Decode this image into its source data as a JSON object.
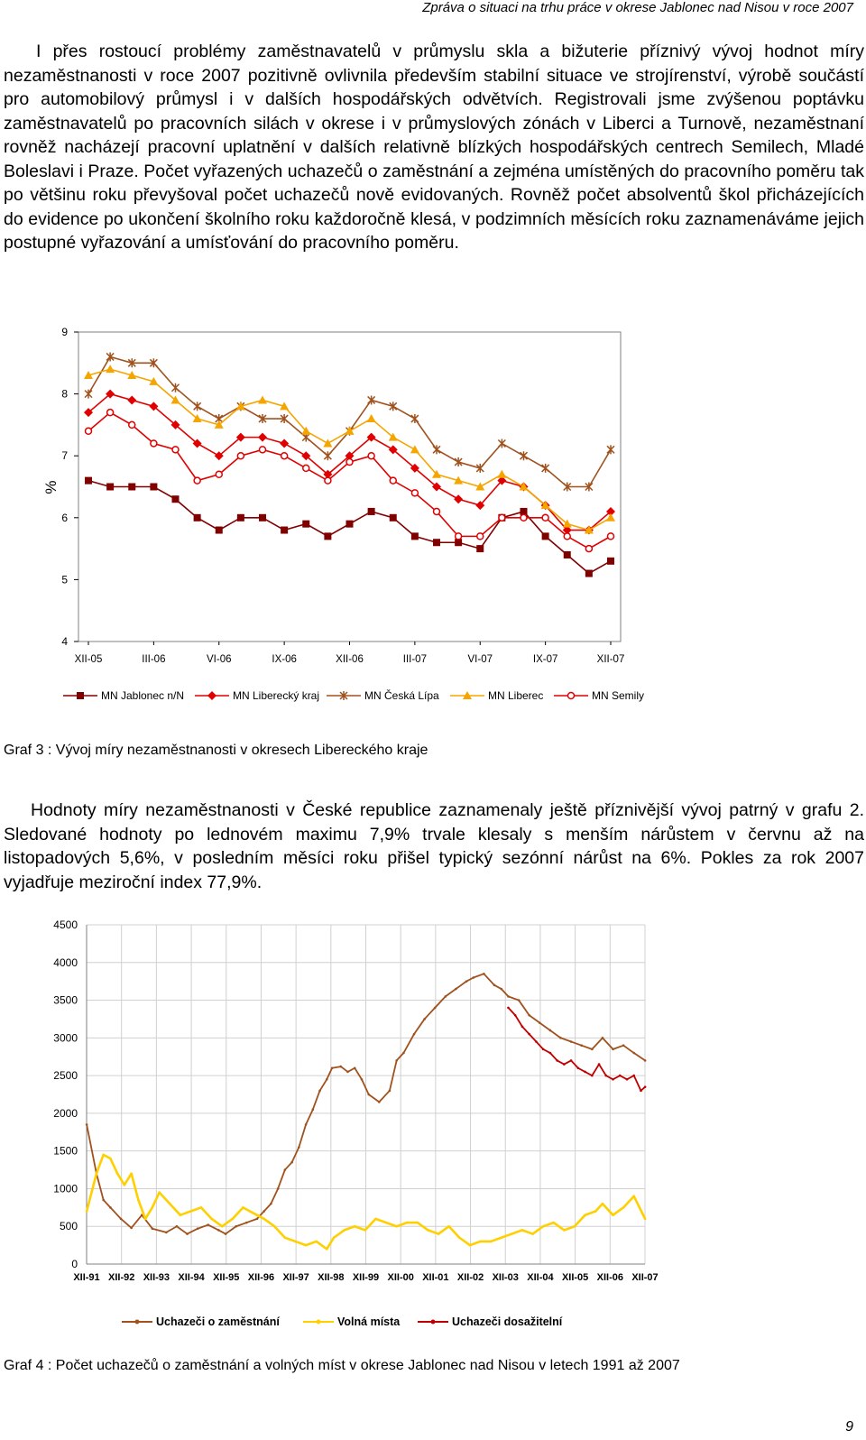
{
  "header": {
    "running_title": "Zpráva o situaci na trhu práce v okrese Jablonec nad Nisou v roce 2007"
  },
  "text": {
    "paragraph_1": "I přes rostoucí problémy zaměstnavatelů v průmyslu skla a bižuterie příznivý vývoj hodnot míry nezaměstnanosti v roce 2007 pozitivně ovlivnila především stabilní situace ve strojírenství, výrobě součástí pro automobilový průmysl i v dalších hospodářských odvětvích. Registrovali jsme zvýšenou poptávku zaměstnavatelů po pracovních silách v okrese i v průmyslových zónách v Liberci a Turnově, nezaměstnaní rovněž nacházejí pracovní uplatnění v dalších relativně blízkých hospodářských centrech Semilech, Mladé Boleslavi i Praze. Počet vyřazených uchazečů o zaměstnání a zejména umístěných do pracovního poměru tak po většinu roku převyšoval počet uchazečů nově evidovaných. Rovněž počet absolventů škol přicházejících do evidence po ukončení školního roku každoročně klesá, v podzimních měsících roku zaznamenáváme jejich postupné vyřazování a umísťování do pracovního poměru.",
    "paragraph_2": "Hodnoty míry nezaměstnanosti v České republice zaznamenaly ještě příznivější vývoj patrný v grafu 2. Sledované hodnoty po lednovém maximu 7,9% trvale klesaly s menším nárůstem v červnu až na listopadových 5,6%, v posledním měsíci roku přišel typický sezónní nárůst na 6%. Pokles za rok 2007 vyjadřuje meziroční index 77,9%."
  },
  "captions": {
    "graf3": "Graf 3 : Vývoj míry nezaměstnanosti v okresech Libereckého kraje",
    "graf4": "Graf 4 : Počet uchazečů o zaměstnání a volných míst v okrese Jablonec nad Nisou v letech 1991 až 2007"
  },
  "page_number": "9",
  "chart_data": [
    {
      "type": "line",
      "ylabel": "%",
      "ylim": [
        4,
        9
      ],
      "yticks": [
        "4",
        "5",
        "6",
        "7",
        "8",
        "9"
      ],
      "x": [
        "XII-05",
        "I-06",
        "II-06",
        "III-06",
        "IV-06",
        "V-06",
        "VI-06",
        "VII-06",
        "VIII-06",
        "IX-06",
        "X-06",
        "XI-06",
        "XII-06",
        "I-07",
        "II-07",
        "III-07",
        "IV-07",
        "V-07",
        "VI-07",
        "VII-07",
        "VIII-07",
        "IX-07",
        "X-07",
        "XI-07",
        "XII-07"
      ],
      "xtick_labels": [
        "XII-05",
        "III-06",
        "VI-06",
        "IX-06",
        "XII-06",
        "III-07",
        "VI-07",
        "IX-07",
        "XII-07"
      ],
      "legend_position": "bottom",
      "series": [
        {
          "name": "MN Jablonec n/N",
          "color": "#800000",
          "marker": "square",
          "values": [
            6.6,
            6.5,
            6.5,
            6.5,
            6.3,
            6.0,
            5.8,
            6.0,
            6.0,
            5.8,
            5.9,
            5.7,
            5.9,
            6.1,
            6.0,
            5.7,
            5.6,
            5.6,
            5.5,
            6.0,
            6.1,
            5.7,
            5.4,
            5.1,
            5.3
          ]
        },
        {
          "name": "MN Liberecký kraj",
          "color": "#e00000",
          "marker": "diamond",
          "values": [
            7.7,
            8.0,
            7.9,
            7.8,
            7.5,
            7.2,
            7.0,
            7.3,
            7.3,
            7.2,
            7.0,
            6.7,
            7.0,
            7.3,
            7.1,
            6.8,
            6.5,
            6.3,
            6.2,
            6.6,
            6.5,
            6.2,
            5.8,
            5.8,
            6.1
          ]
        },
        {
          "name": "MN Česká Lípa",
          "color": "#a0521e",
          "marker": "star",
          "values": [
            8.0,
            8.6,
            8.5,
            8.5,
            8.1,
            7.8,
            7.6,
            7.8,
            7.6,
            7.6,
            7.3,
            7.0,
            7.4,
            7.9,
            7.8,
            7.6,
            7.1,
            6.9,
            6.8,
            7.2,
            7.0,
            6.8,
            6.5,
            6.5,
            7.1
          ]
        },
        {
          "name": "MN Liberec",
          "color": "#f5a500",
          "marker": "triangle",
          "values": [
            8.3,
            8.4,
            8.3,
            8.2,
            7.9,
            7.6,
            7.5,
            7.8,
            7.9,
            7.8,
            7.4,
            7.2,
            7.4,
            7.6,
            7.3,
            7.1,
            6.7,
            6.6,
            6.5,
            6.7,
            6.5,
            6.2,
            5.9,
            5.8,
            6.0
          ]
        },
        {
          "name": "MN Semily",
          "color": "#e00000",
          "marker": "circle",
          "values": [
            7.4,
            7.7,
            7.5,
            7.2,
            7.1,
            6.6,
            6.7,
            7.0,
            7.1,
            7.0,
            6.8,
            6.6,
            6.9,
            7.0,
            6.6,
            6.4,
            6.1,
            5.7,
            5.7,
            6.0,
            6.0,
            6.0,
            5.7,
            5.5,
            5.7
          ]
        }
      ]
    },
    {
      "type": "line",
      "ylim": [
        0,
        4500
      ],
      "yticks": [
        "0",
        "500",
        "1000",
        "1500",
        "2000",
        "2500",
        "3000",
        "3500",
        "4000",
        "4500"
      ],
      "xlim": [
        1991.917,
        2007.917
      ],
      "xtick_labels": [
        "XII-91",
        "XII-92",
        "XII-93",
        "XII-94",
        "XII-95",
        "XII-96",
        "XII-97",
        "XII-98",
        "XII-99",
        "XII-00",
        "XII-01",
        "XII-02",
        "XII-03",
        "XII-04",
        "XII-05",
        "XII-06",
        "XII-07"
      ],
      "legend_position": "bottom",
      "series": [
        {
          "name": "Uchazeči o zaměstnání",
          "color": "#a0521e",
          "x": [
            1991.92,
            1992.2,
            1992.4,
            1992.6,
            1992.9,
            1993.2,
            1993.5,
            1993.8,
            1994.2,
            1994.5,
            1994.8,
            1995.1,
            1995.4,
            1995.7,
            1995.9,
            1996.2,
            1996.5,
            1996.8,
            1997.0,
            1997.2,
            1997.4,
            1997.6,
            1997.8,
            1998.0,
            1998.2,
            1998.4,
            1998.6,
            1998.8,
            1998.95,
            1999.2,
            1999.4,
            1999.6,
            1999.8,
            2000.0,
            2000.3,
            2000.6,
            2000.8,
            2001.0,
            2001.3,
            2001.6,
            2001.9,
            2002.2,
            2002.5,
            2002.8,
            2003.0,
            2003.3,
            2003.6,
            2003.8,
            2004.0,
            2004.3,
            2004.6,
            2004.9,
            2005.2,
            2005.5,
            2005.8,
            2006.1,
            2006.4,
            2006.7,
            2007.0,
            2007.3,
            2007.6,
            2007.92
          ],
          "values": [
            1850,
            1200,
            850,
            750,
            600,
            480,
            650,
            470,
            420,
            500,
            400,
            470,
            520,
            450,
            400,
            500,
            550,
            600,
            700,
            800,
            1000,
            1250,
            1350,
            1550,
            1850,
            2050,
            2300,
            2450,
            2600,
            2620,
            2550,
            2600,
            2450,
            2250,
            2150,
            2300,
            2700,
            2800,
            3050,
            3250,
            3400,
            3550,
            3650,
            3750,
            3800,
            3850,
            3700,
            3650,
            3550,
            3500,
            3300,
            3200,
            3100,
            3000,
            2950,
            2900,
            2850,
            3000,
            2850,
            2900,
            2800,
            2700
          ]
        },
        {
          "name": "Volná místa",
          "color": "#ffd000",
          "x": [
            1991.92,
            1992.2,
            1992.4,
            1992.6,
            1992.8,
            1993.0,
            1993.2,
            1993.4,
            1993.6,
            1993.8,
            1994.0,
            1994.3,
            1994.6,
            1994.9,
            1995.2,
            1995.5,
            1995.8,
            1996.1,
            1996.4,
            1996.8,
            1997.0,
            1997.3,
            1997.6,
            1997.9,
            1998.2,
            1998.5,
            1998.8,
            1999.0,
            1999.3,
            1999.6,
            1999.9,
            2000.2,
            2000.5,
            2000.8,
            2001.1,
            2001.4,
            2001.7,
            2002.0,
            2002.3,
            2002.6,
            2002.9,
            2003.2,
            2003.5,
            2003.8,
            2004.1,
            2004.4,
            2004.7,
            2005.0,
            2005.3,
            2005.6,
            2005.9,
            2006.2,
            2006.5,
            2006.7,
            2007.0,
            2007.3,
            2007.6,
            2007.92
          ],
          "values": [
            700,
            1200,
            1450,
            1400,
            1200,
            1050,
            1200,
            850,
            600,
            750,
            950,
            800,
            650,
            700,
            750,
            600,
            500,
            600,
            750,
            650,
            600,
            500,
            350,
            300,
            250,
            300,
            200,
            350,
            450,
            500,
            450,
            600,
            550,
            500,
            550,
            550,
            450,
            400,
            500,
            350,
            250,
            300,
            300,
            350,
            400,
            450,
            400,
            500,
            550,
            450,
            500,
            650,
            700,
            800,
            650,
            750,
            900,
            600
          ]
        },
        {
          "name": "Uchazeči dosažitelní",
          "color": "#c00000",
          "x": [
            2004.0,
            2004.2,
            2004.4,
            2004.6,
            2004.8,
            2005.0,
            2005.2,
            2005.4,
            2005.6,
            2005.8,
            2006.0,
            2006.2,
            2006.4,
            2006.6,
            2006.8,
            2007.0,
            2007.2,
            2007.4,
            2007.6,
            2007.8,
            2007.92
          ],
          "values": [
            3400,
            3300,
            3150,
            3050,
            2950,
            2850,
            2800,
            2700,
            2650,
            2700,
            2600,
            2550,
            2500,
            2650,
            2500,
            2450,
            2500,
            2450,
            2500,
            2300,
            2350
          ]
        }
      ]
    }
  ]
}
